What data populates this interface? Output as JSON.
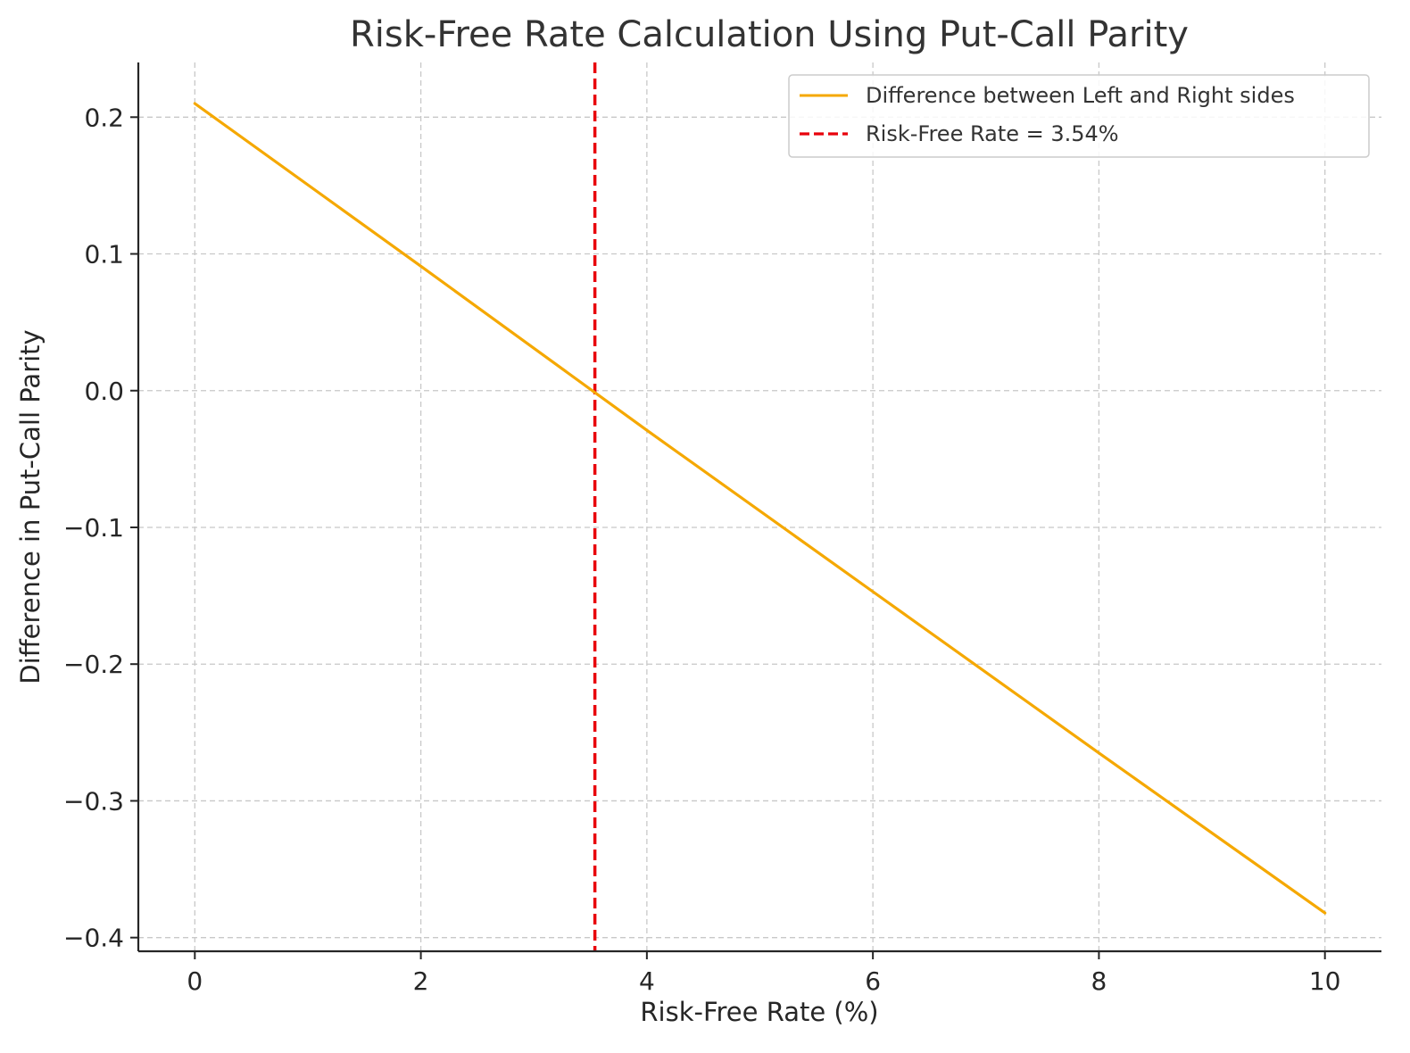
{
  "chart_data": {
    "type": "line",
    "title": "Risk-Free Rate Calculation Using Put-Call Parity",
    "xlabel": "Risk-Free Rate (%)",
    "ylabel": "Difference in Put-Call Parity",
    "xlim": [
      -0.5,
      10.5
    ],
    "ylim": [
      -0.41,
      0.24
    ],
    "x_ticks": [
      0,
      2,
      4,
      6,
      8,
      10
    ],
    "x_tick_labels": [
      "0",
      "2",
      "4",
      "6",
      "8",
      "10"
    ],
    "y_ticks": [
      0.2,
      0.1,
      0.0,
      -0.1,
      -0.2,
      -0.3,
      -0.4
    ],
    "y_tick_labels": [
      "0.2",
      "0.1",
      "0.0",
      "−0.1",
      "−0.2",
      "−0.3",
      "−0.4"
    ],
    "grid": true,
    "legend_position": "top-right",
    "series": [
      {
        "name": "Difference between Left and Right sides",
        "color": "#f5a800",
        "x": [
          0,
          2,
          4,
          6,
          8,
          10
        ],
        "y": [
          0.21,
          0.091,
          -0.029,
          -0.147,
          -0.265,
          -0.382
        ]
      }
    ],
    "reference_lines": [
      {
        "name": "Risk-Free Rate = 3.54%",
        "orientation": "vertical",
        "x": 3.54,
        "color": "#e8000b",
        "style": "dashed"
      }
    ]
  }
}
